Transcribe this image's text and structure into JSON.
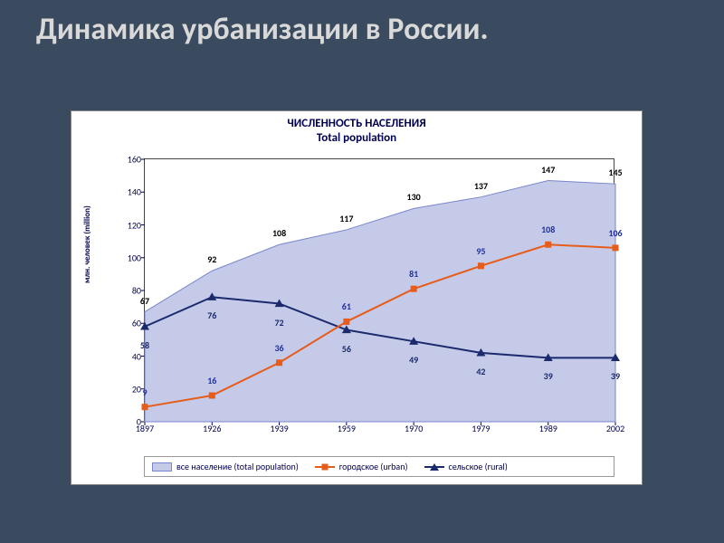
{
  "slide": {
    "title": "Динамика  урбанизации в России.",
    "bg_color": "#3b4b5f",
    "title_color": "#d9d9d9"
  },
  "chart": {
    "type": "area+line",
    "title_line1": "ЧИСЛЕННОСТЬ НАСЕЛЕНИЯ",
    "title_line2": "Total population",
    "ylabel_line1": "млн. человек",
    "ylabel_line2": "(million)",
    "background_color": "#ffffff",
    "plot_bg": "#ffffff",
    "border_color": "#444444",
    "ylim": [
      0,
      160
    ],
    "ytick_step": 20,
    "yticks": [
      0,
      20,
      40,
      60,
      80,
      100,
      120,
      140,
      160
    ],
    "x_categories": [
      "1897",
      "1926",
      "1939",
      "1959",
      "1970",
      "1979",
      "1989",
      "2002"
    ],
    "series": {
      "total": {
        "label": "все население   (total population)",
        "type": "area",
        "color": "#c5cae9",
        "line_color": "#7986cb",
        "values": [
          67,
          92,
          108,
          117,
          130,
          137,
          147,
          145
        ],
        "data_label_color": "#000000",
        "label_dy": -6
      },
      "urban": {
        "label": "городское   (urban)",
        "type": "line",
        "color": "#e65c1a",
        "marker": "square",
        "marker_size": 7,
        "line_width": 2,
        "values": [
          9,
          16,
          36,
          61,
          81,
          95,
          108,
          106
        ],
        "data_label_color": "#2030a0",
        "label_dy": -10
      },
      "rural": {
        "label": "сельское   (rural)",
        "type": "line",
        "color": "#1a2a6c",
        "marker": "triangle",
        "marker_size": 8,
        "line_width": 2,
        "values": [
          58,
          76,
          72,
          56,
          49,
          42,
          39,
          39
        ],
        "data_label_color": "#1a2a6c",
        "label_dy": 14
      }
    },
    "legend_border": "#999999",
    "tick_color": "#000050"
  }
}
